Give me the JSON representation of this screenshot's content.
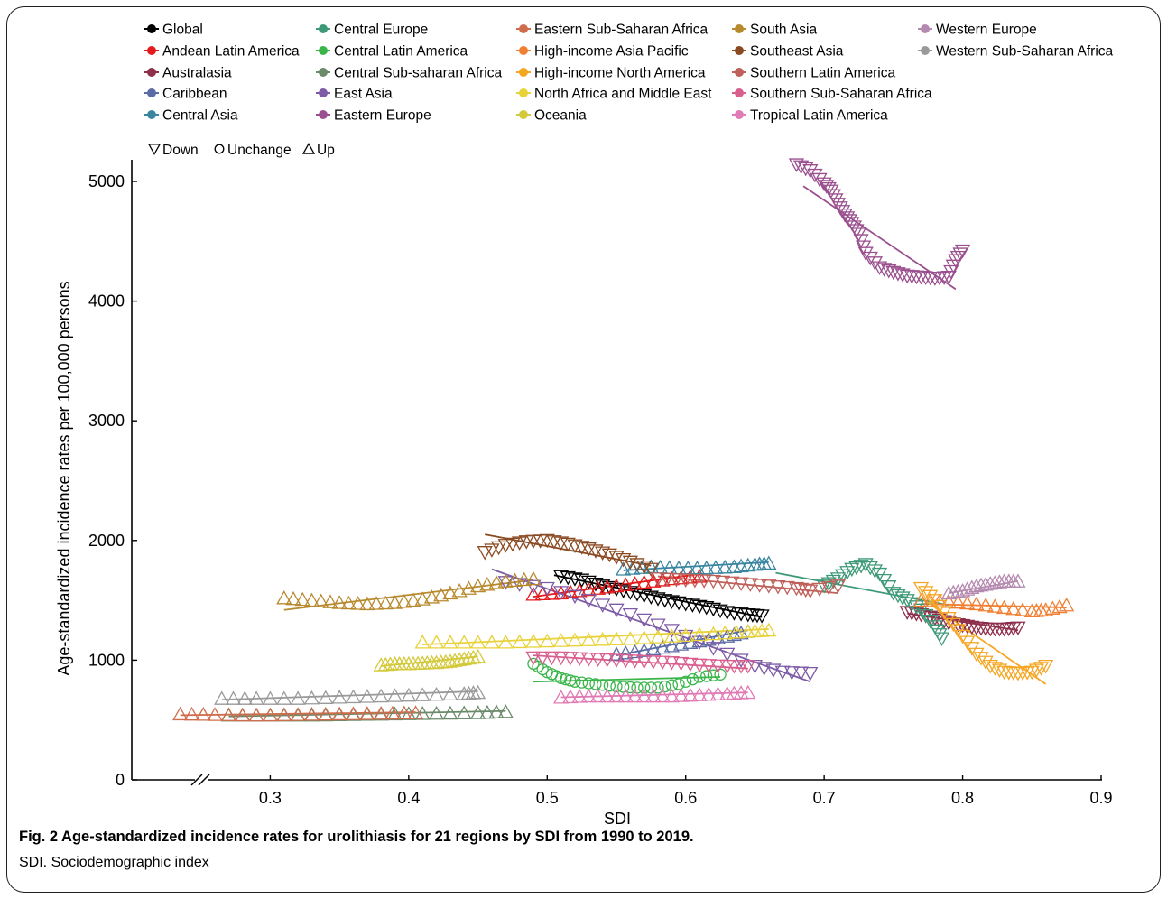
{
  "figure": {
    "caption": "Fig. 2    Age-standardized incidence rates for urolithiasis for 21 regions by SDI from 1990 to 2019.",
    "footnote": "SDI. Sociodemographic index"
  },
  "chart_data": {
    "type": "scatter",
    "xlabel": "SDI",
    "ylabel": "Age-standardized incidence rates per 100,000 persons",
    "xlim": [
      0.2,
      0.9
    ],
    "ylim": [
      0,
      5200
    ],
    "x_axis_break": true,
    "x_ticks": [
      "0.3",
      "0.4",
      "0.5",
      "0.6",
      "0.7",
      "0.8",
      "0.9"
    ],
    "y_ticks": [
      "0",
      "1000",
      "2000",
      "3000",
      "4000",
      "5000"
    ],
    "grid": false,
    "legend_position": "top",
    "trend_legend": [
      {
        "marker": "down",
        "label": "Down"
      },
      {
        "marker": "unchange",
        "label": "Unchange"
      },
      {
        "marker": "up",
        "label": "Up"
      }
    ],
    "series": [
      {
        "name": "Global",
        "color": "#000000",
        "trend": "down",
        "points": [
          [
            0.51,
            1700
          ],
          [
            0.525,
            1670
          ],
          [
            0.54,
            1620
          ],
          [
            0.555,
            1580
          ],
          [
            0.57,
            1540
          ],
          [
            0.585,
            1500
          ],
          [
            0.6,
            1470
          ],
          [
            0.615,
            1440
          ],
          [
            0.63,
            1400
          ],
          [
            0.645,
            1380
          ],
          [
            0.655,
            1370
          ]
        ],
        "fit": [
          [
            0.505,
            1710
          ],
          [
            0.655,
            1360
          ]
        ]
      },
      {
        "name": "Andean Latin America",
        "color": "#e41a1c",
        "trend": "up",
        "points": [
          [
            0.49,
            1550
          ],
          [
            0.51,
            1560
          ],
          [
            0.53,
            1590
          ],
          [
            0.55,
            1620
          ],
          [
            0.57,
            1650
          ],
          [
            0.59,
            1680
          ],
          [
            0.61,
            1700
          ]
        ],
        "fit": [
          [
            0.49,
            1530
          ],
          [
            0.61,
            1720
          ]
        ]
      },
      {
        "name": "Australasia",
        "color": "#8e2f4c",
        "trend": "down",
        "points": [
          [
            0.76,
            1400
          ],
          [
            0.77,
            1380
          ],
          [
            0.78,
            1350
          ],
          [
            0.79,
            1310
          ],
          [
            0.8,
            1290
          ],
          [
            0.81,
            1270
          ],
          [
            0.82,
            1260
          ],
          [
            0.83,
            1260
          ],
          [
            0.84,
            1270
          ]
        ],
        "fit": [
          [
            0.76,
            1390
          ],
          [
            0.84,
            1250
          ]
        ]
      },
      {
        "name": "Caribbean",
        "color": "#5b6ba6",
        "trend": "up",
        "points": [
          [
            0.55,
            1050
          ],
          [
            0.57,
            1080
          ],
          [
            0.59,
            1120
          ],
          [
            0.61,
            1160
          ],
          [
            0.63,
            1200
          ],
          [
            0.645,
            1240
          ]
        ],
        "fit": [
          [
            0.55,
            1040
          ],
          [
            0.645,
            1250
          ]
        ]
      },
      {
        "name": "Central Asia",
        "color": "#3a86a0",
        "trend": "up",
        "points": [
          [
            0.555,
            1760
          ],
          [
            0.575,
            1780
          ],
          [
            0.595,
            1770
          ],
          [
            0.615,
            1770
          ],
          [
            0.635,
            1780
          ],
          [
            0.65,
            1800
          ],
          [
            0.66,
            1810
          ]
        ],
        "fit": [
          [
            0.555,
            1750
          ],
          [
            0.66,
            1820
          ]
        ]
      },
      {
        "name": "Central Europe",
        "color": "#3d9978",
        "trend": "down",
        "points": [
          [
            0.7,
            1620
          ],
          [
            0.71,
            1680
          ],
          [
            0.72,
            1760
          ],
          [
            0.73,
            1800
          ],
          [
            0.74,
            1720
          ],
          [
            0.75,
            1560
          ],
          [
            0.76,
            1500
          ],
          [
            0.77,
            1420
          ],
          [
            0.78,
            1280
          ],
          [
            0.785,
            1180
          ]
        ],
        "fit": [
          [
            0.665,
            1730
          ],
          [
            0.79,
            1460
          ]
        ]
      },
      {
        "name": "Central Latin America",
        "color": "#3ab54a",
        "trend": "unchange",
        "points": [
          [
            0.49,
            970
          ],
          [
            0.5,
            900
          ],
          [
            0.51,
            850
          ],
          [
            0.52,
            820
          ],
          [
            0.535,
            800
          ],
          [
            0.55,
            780
          ],
          [
            0.565,
            770
          ],
          [
            0.58,
            770
          ],
          [
            0.595,
            800
          ],
          [
            0.61,
            860
          ],
          [
            0.625,
            880
          ]
        ],
        "fit": [
          [
            0.49,
            820
          ],
          [
            0.625,
            860
          ]
        ]
      },
      {
        "name": "Central Sub-saharan Africa",
        "color": "#6a8a6a",
        "trend": "up",
        "points": [
          [
            0.27,
            540
          ],
          [
            0.3,
            540
          ],
          [
            0.33,
            540
          ],
          [
            0.36,
            545
          ],
          [
            0.39,
            550
          ],
          [
            0.42,
            555
          ],
          [
            0.45,
            560
          ],
          [
            0.47,
            570
          ]
        ],
        "fit": [
          [
            0.27,
            530
          ],
          [
            0.47,
            575
          ]
        ]
      },
      {
        "name": "East Asia",
        "color": "#7d5ba6",
        "trend": "down",
        "points": [
          [
            0.47,
            1650
          ],
          [
            0.5,
            1600
          ],
          [
            0.53,
            1500
          ],
          [
            0.56,
            1380
          ],
          [
            0.59,
            1250
          ],
          [
            0.62,
            1100
          ],
          [
            0.65,
            950
          ],
          [
            0.67,
            900
          ],
          [
            0.69,
            890
          ]
        ],
        "fit": [
          [
            0.46,
            1760
          ],
          [
            0.69,
            820
          ]
        ]
      },
      {
        "name": "Eastern Europe",
        "color": "#9a4f8e",
        "trend": "down",
        "points": [
          [
            0.68,
            5140
          ],
          [
            0.69,
            5090
          ],
          [
            0.7,
            4980
          ],
          [
            0.705,
            4920
          ],
          [
            0.71,
            4810
          ],
          [
            0.715,
            4720
          ],
          [
            0.72,
            4650
          ],
          [
            0.725,
            4560
          ],
          [
            0.73,
            4400
          ],
          [
            0.74,
            4280
          ],
          [
            0.75,
            4240
          ],
          [
            0.76,
            4210
          ],
          [
            0.77,
            4200
          ],
          [
            0.78,
            4190
          ],
          [
            0.79,
            4200
          ],
          [
            0.795,
            4340
          ],
          [
            0.8,
            4420
          ]
        ],
        "fit": [
          [
            0.685,
            4960
          ],
          [
            0.795,
            4100
          ]
        ]
      },
      {
        "name": "Eastern Sub-Saharan Africa",
        "color": "#d06c4c",
        "trend": "up",
        "points": [
          [
            0.235,
            550
          ],
          [
            0.26,
            545
          ],
          [
            0.29,
            540
          ],
          [
            0.32,
            545
          ],
          [
            0.35,
            550
          ],
          [
            0.38,
            555
          ],
          [
            0.405,
            560
          ]
        ],
        "fit": [
          [
            0.235,
            540
          ],
          [
            0.405,
            565
          ]
        ]
      },
      {
        "name": "High-income Asia Pacific",
        "color": "#f07f32",
        "trend": "up",
        "points": [
          [
            0.77,
            1500
          ],
          [
            0.79,
            1490
          ],
          [
            0.81,
            1470
          ],
          [
            0.83,
            1440
          ],
          [
            0.85,
            1410
          ],
          [
            0.86,
            1420
          ],
          [
            0.875,
            1460
          ]
        ],
        "fit": [
          [
            0.77,
            1470
          ],
          [
            0.875,
            1440
          ]
        ]
      },
      {
        "name": "High-income North America",
        "color": "#f5a623",
        "trend": "down",
        "points": [
          [
            0.77,
            1600
          ],
          [
            0.78,
            1500
          ],
          [
            0.79,
            1350
          ],
          [
            0.8,
            1200
          ],
          [
            0.81,
            1050
          ],
          [
            0.82,
            950
          ],
          [
            0.83,
            900
          ],
          [
            0.84,
            890
          ],
          [
            0.85,
            900
          ],
          [
            0.86,
            950
          ]
        ],
        "fit": [
          [
            0.77,
            1520
          ],
          [
            0.86,
            800
          ]
        ]
      },
      {
        "name": "North Africa and Middle East",
        "color": "#e8d23a",
        "trend": "up",
        "points": [
          [
            0.41,
            1150
          ],
          [
            0.44,
            1150
          ],
          [
            0.47,
            1150
          ],
          [
            0.5,
            1160
          ],
          [
            0.53,
            1170
          ],
          [
            0.56,
            1180
          ],
          [
            0.59,
            1200
          ],
          [
            0.62,
            1220
          ],
          [
            0.645,
            1240
          ],
          [
            0.66,
            1250
          ]
        ],
        "fit": [
          [
            0.41,
            1130
          ],
          [
            0.66,
            1260
          ]
        ]
      },
      {
        "name": "Oceania",
        "color": "#d4c93a",
        "trend": "up",
        "points": [
          [
            0.38,
            960
          ],
          [
            0.39,
            970
          ],
          [
            0.4,
            970
          ],
          [
            0.41,
            975
          ],
          [
            0.42,
            980
          ],
          [
            0.43,
            990
          ],
          [
            0.44,
            1010
          ],
          [
            0.45,
            1030
          ]
        ],
        "fit": [
          [
            0.38,
            950
          ],
          [
            0.45,
            1030
          ]
        ]
      },
      {
        "name": "South Asia",
        "color": "#b88a2e",
        "trend": "up",
        "points": [
          [
            0.31,
            1520
          ],
          [
            0.33,
            1500
          ],
          [
            0.35,
            1480
          ],
          [
            0.37,
            1470
          ],
          [
            0.39,
            1480
          ],
          [
            0.41,
            1510
          ],
          [
            0.43,
            1560
          ],
          [
            0.45,
            1620
          ],
          [
            0.47,
            1660
          ],
          [
            0.49,
            1680
          ]
        ],
        "fit": [
          [
            0.31,
            1420
          ],
          [
            0.49,
            1670
          ]
        ]
      },
      {
        "name": "Southeast Asia",
        "color": "#8a4a22",
        "trend": "down",
        "points": [
          [
            0.455,
            1900
          ],
          [
            0.47,
            1960
          ],
          [
            0.485,
            1990
          ],
          [
            0.5,
            2000
          ],
          [
            0.515,
            1970
          ],
          [
            0.53,
            1930
          ],
          [
            0.545,
            1880
          ],
          [
            0.56,
            1820
          ],
          [
            0.575,
            1760
          ]
        ],
        "fit": [
          [
            0.455,
            2050
          ],
          [
            0.575,
            1790
          ]
        ]
      },
      {
        "name": "Southern Latin America",
        "color": "#c0605a",
        "trend": "down",
        "points": [
          [
            0.58,
            1680
          ],
          [
            0.6,
            1670
          ],
          [
            0.62,
            1660
          ],
          [
            0.64,
            1640
          ],
          [
            0.66,
            1620
          ],
          [
            0.68,
            1600
          ],
          [
            0.69,
            1580
          ],
          [
            0.71,
            1620
          ]
        ],
        "fit": [
          [
            0.58,
            1700
          ],
          [
            0.71,
            1560
          ]
        ]
      },
      {
        "name": "Southern Sub-Saharan Africa",
        "color": "#d95f8e",
        "trend": "down",
        "points": [
          [
            0.49,
            1020
          ],
          [
            0.51,
            1020
          ],
          [
            0.53,
            1010
          ],
          [
            0.55,
            1000
          ],
          [
            0.57,
            990
          ],
          [
            0.59,
            980
          ],
          [
            0.61,
            960
          ],
          [
            0.63,
            950
          ],
          [
            0.645,
            950
          ]
        ],
        "fit": [
          [
            0.49,
            1040
          ],
          [
            0.645,
            930
          ]
        ]
      },
      {
        "name": "Tropical Latin America",
        "color": "#e07bb5",
        "trend": "up",
        "points": [
          [
            0.51,
            690
          ],
          [
            0.53,
            700
          ],
          [
            0.55,
            700
          ],
          [
            0.57,
            700
          ],
          [
            0.59,
            700
          ],
          [
            0.61,
            710
          ],
          [
            0.63,
            720
          ],
          [
            0.645,
            730
          ]
        ],
        "fit": [
          [
            0.51,
            690
          ],
          [
            0.645,
            730
          ]
        ]
      },
      {
        "name": "Western Europe",
        "color": "#b58ab0",
        "trend": "up",
        "points": [
          [
            0.79,
            1560
          ],
          [
            0.8,
            1580
          ],
          [
            0.81,
            1620
          ],
          [
            0.82,
            1640
          ],
          [
            0.83,
            1660
          ],
          [
            0.84,
            1660
          ]
        ],
        "fit": [
          [
            0.79,
            1560
          ],
          [
            0.84,
            1660
          ]
        ]
      },
      {
        "name": "Western Sub-Saharan Africa",
        "color": "#9a9a9a",
        "trend": "up",
        "points": [
          [
            0.265,
            680
          ],
          [
            0.29,
            680
          ],
          [
            0.32,
            680
          ],
          [
            0.35,
            690
          ],
          [
            0.38,
            700
          ],
          [
            0.41,
            710
          ],
          [
            0.44,
            720
          ],
          [
            0.45,
            730
          ]
        ],
        "fit": [
          [
            0.265,
            670
          ],
          [
            0.45,
            740
          ]
        ]
      }
    ]
  }
}
